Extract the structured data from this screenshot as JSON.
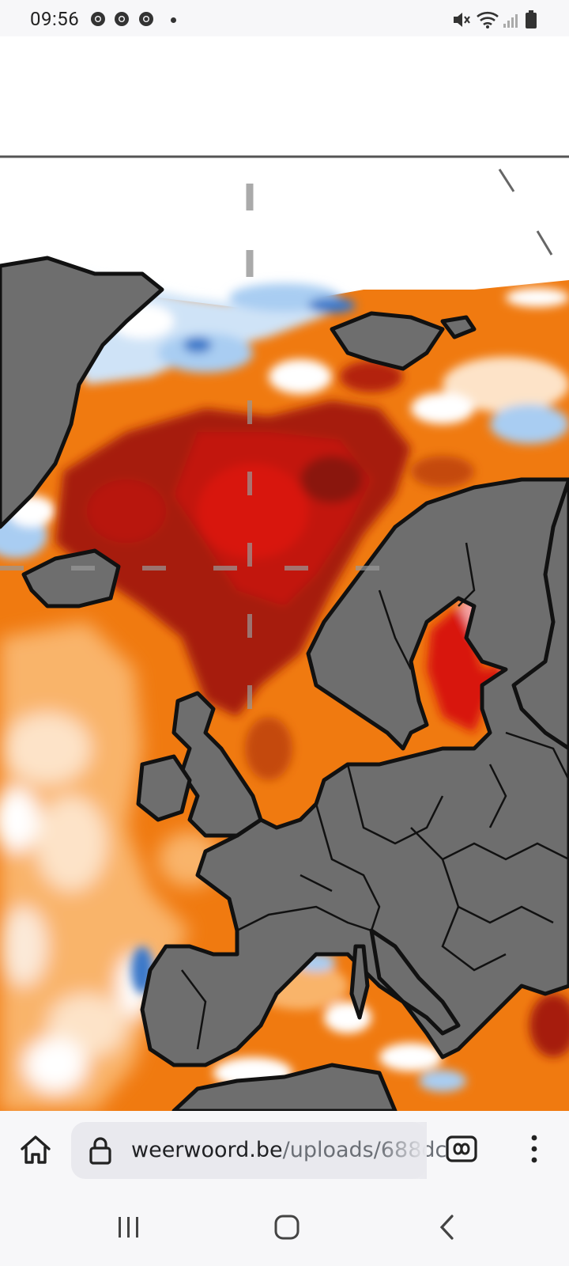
{
  "status_bar": {
    "time": "09:56",
    "notification_icons": [
      "chrome-icon",
      "chrome-icon",
      "chrome-icon",
      "dot-icon"
    ],
    "system_icons": [
      "mute-icon",
      "wifi-icon",
      "signal-icon",
      "battery-icon"
    ]
  },
  "browser": {
    "url_domain": "weerwoord.be",
    "url_path": "/uploads/688dc",
    "icons": {
      "home": "home-icon",
      "lock": "lock-icon",
      "tabs": "tab-switcher-icon",
      "menu": "more-vert-icon"
    }
  },
  "navbar": {
    "icons": [
      "recent-apps-icon",
      "home-nav-icon",
      "back-icon"
    ]
  },
  "map": {
    "content": "sea-surface-temperature-anomaly-map-europe",
    "colors": {
      "land": "#6e6e6e",
      "dark_red": "#a61c0a",
      "red": "#d8120e",
      "orange": "#f07a10",
      "light_orange": "#f9b46a",
      "pale": "#fde3c8",
      "light_blue": "#a9cdf2",
      "blue": "#3a78c9"
    }
  }
}
